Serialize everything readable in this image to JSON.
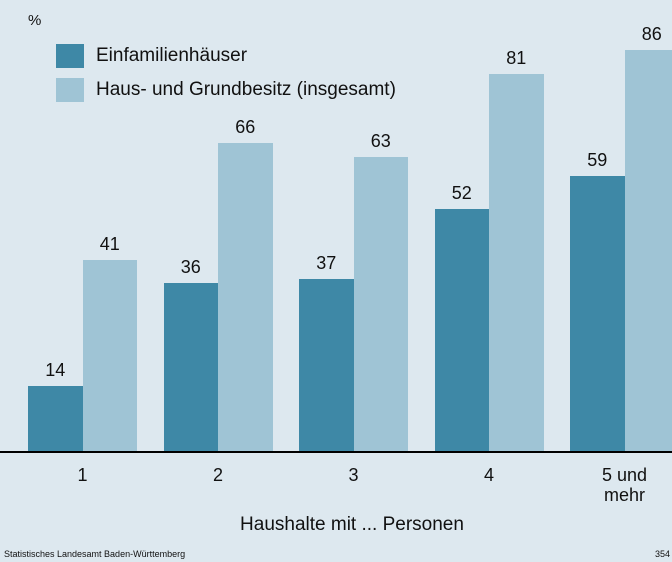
{
  "chart_data": {
    "type": "bar",
    "y_label": "%",
    "x_label": "Haushalte mit ... Personen",
    "categories": [
      "1",
      "2",
      "3",
      "4",
      "5 und mehr"
    ],
    "series": [
      {
        "name": "Einfamilienhäuser",
        "color": "#3e88a6",
        "values": [
          14,
          36,
          37,
          52,
          59
        ]
      },
      {
        "name": "Haus- und Grundbesitz (insgesamt)",
        "color": "#9fc4d5",
        "values": [
          41,
          66,
          63,
          81,
          86
        ]
      }
    ],
    "legend": "upper left",
    "source": "Statistisches Landesamt Baden-Württemberg",
    "page_number": "354"
  }
}
